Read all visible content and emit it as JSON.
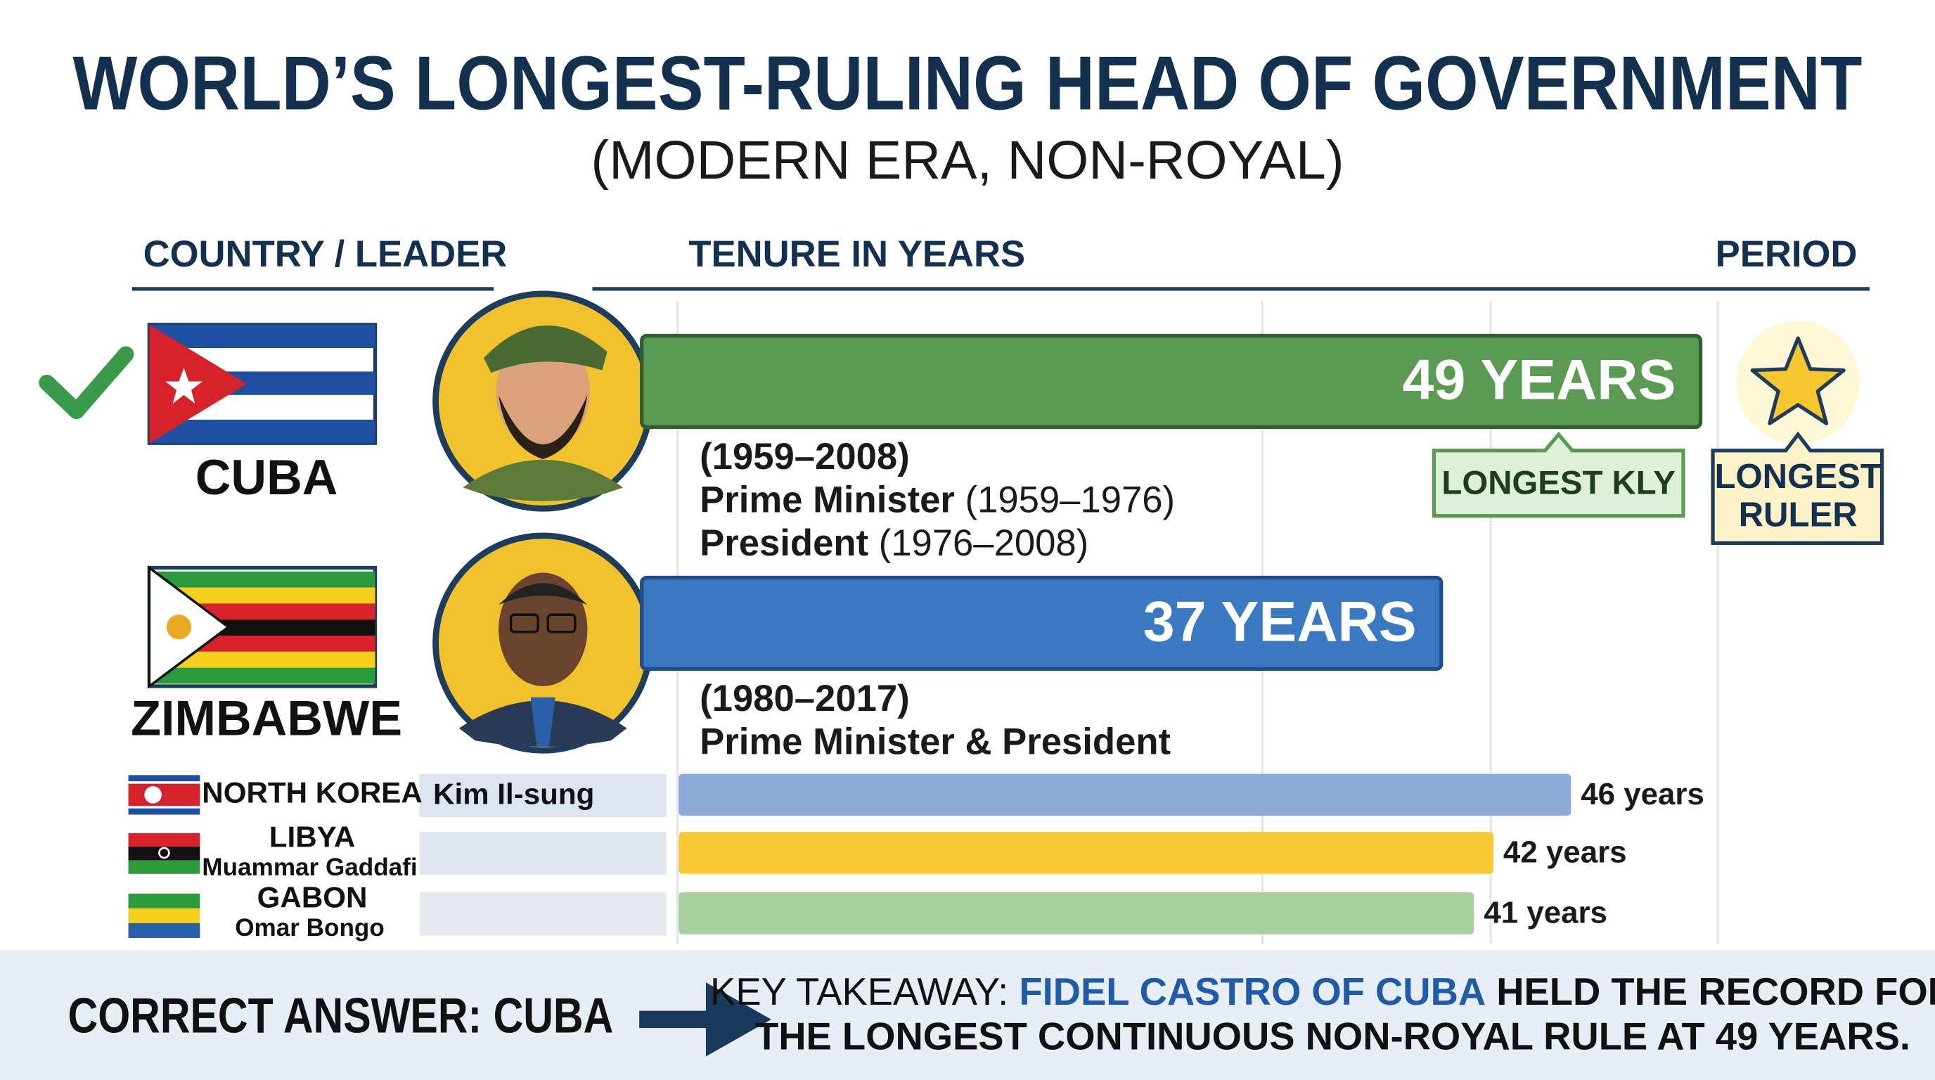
{
  "chart_data": {
    "type": "bar",
    "title": "WORLD’S LONGEST-RULING HEAD OF GOVERNMENT",
    "subtitle": "(MODERN ERA, NON-ROYAL)",
    "column_headers": [
      "COUNTRY / LEADER",
      "TENURE IN YEARS",
      "PERIOD"
    ],
    "categories": [
      "CUBA",
      "ZIMBABWE",
      "NORTH KOREA",
      "LIBYA",
      "GABON"
    ],
    "leaders": [
      null,
      null,
      "Kim Il-sung",
      "Muammar Gaddafi",
      "Omar Bongo"
    ],
    "values": [
      49,
      37,
      46,
      42,
      41
    ],
    "value_labels": [
      "49 YEARS",
      "37 YEARS",
      "46 years",
      "42 years",
      "41 years"
    ],
    "colors": [
      "#5b9a52",
      "#3a78c2",
      "#8fa9d8",
      "#f9c934",
      "#a8cf9e"
    ],
    "details": [
      {
        "period": "(1959–2008)",
        "roles": [
          {
            "title": "Prime Minister",
            "years": "(1959–1976)"
          },
          {
            "title": "President",
            "years": "(1976–2008)"
          }
        ]
      },
      {
        "period": "(1980–2017)",
        "roles": [
          {
            "title": "Prime Minister & President"
          }
        ]
      }
    ],
    "annotations": [
      [
        "LONGEST KLY"
      ],
      [
        "LONGEST",
        "RULER"
      ]
    ],
    "footer": {
      "answer": "CORRECT ANSWER: CUBA",
      "takeaway": [
        "KEY TAKEAWAY: ",
        "FIDEL CASTRO OF CUBA",
        " HELD THE RECORD FOR",
        "THE LONGEST CONTINUOUS NON-ROYAL RULE AT 49 YEARS."
      ]
    }
  }
}
